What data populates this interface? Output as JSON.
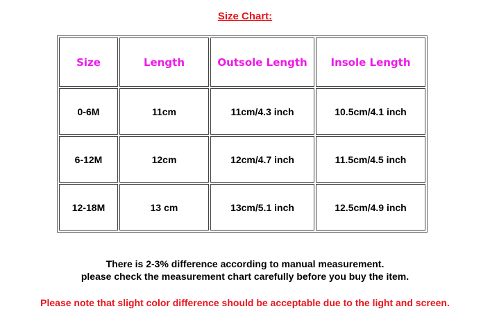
{
  "title": "Size Chart:",
  "table": {
    "headers": [
      "Size",
      "Length",
      "Outsole Length",
      "Insole Length"
    ],
    "rows": [
      [
        "0-6M",
        "11cm",
        "11cm/4.3 inch",
        "10.5cm/4.1 inch"
      ],
      [
        "6-12M",
        "12cm",
        "12cm/4.7 inch",
        "11.5cm/4.5 inch"
      ],
      [
        "12-18M",
        "13 cm",
        "13cm/5.1 inch",
        "12.5cm/4.9 inch"
      ]
    ]
  },
  "notes": [
    "There is 2-3% difference according to manual measurement.",
    "please check the measurement chart carefully before you buy the item."
  ],
  "warning": "Please note that slight color difference should be acceptable due to the light and screen.",
  "colors": {
    "title": "#e8141c",
    "header": "#ee1ae8"
  }
}
